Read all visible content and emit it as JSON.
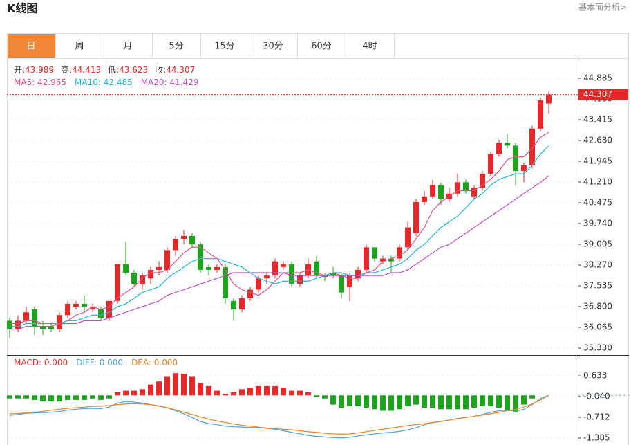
{
  "header": {
    "title": "K线图",
    "link": "基本面分析>"
  },
  "tabs": [
    "日",
    "周",
    "月",
    "5分",
    "15分",
    "30分",
    "60分",
    "4时"
  ],
  "info": [
    {
      "label": "开:",
      "value": "43.989"
    },
    {
      "label": "高:",
      "value": "44.413"
    },
    {
      "label": "低:",
      "value": "43.623"
    },
    {
      "label": "收:",
      "value": "44.307"
    }
  ],
  "chart_data": [
    {
      "type": "candlestick",
      "up_color": "#e52929",
      "down_color": "#1fa31f",
      "grid": true,
      "ylim": [
        35.085,
        45.546
      ],
      "yticks": [
        44.885,
        {
          "value": 44.15,
          "label": "44.150"
        },
        43.415,
        {
          "value": 42.68,
          "label": "42.680"
        },
        41.945,
        {
          "value": 41.21,
          "label": "41.210"
        },
        40.475,
        {
          "value": 39.74,
          "label": "39.740"
        },
        39.005,
        {
          "value": 38.27,
          "label": "38.270"
        },
        37.535,
        {
          "value": 36.8,
          "label": "36.800"
        },
        36.065,
        {
          "value": 35.33,
          "label": "35.330"
        }
      ],
      "last_price": 44.307,
      "open": [
        36.3,
        36.0,
        36.3,
        36.7,
        36.1,
        36.1,
        36.0,
        36.5,
        36.8,
        36.9,
        36.7,
        36.7,
        36.4,
        37.0,
        38.3,
        38.0,
        37.6,
        37.8,
        38.1,
        38.1,
        38.8,
        39.2,
        39.3,
        39.0,
        38.2,
        38.1,
        38.2,
        37.0,
        36.7,
        37.1,
        37.4,
        37.8,
        37.9,
        38.2,
        38.3,
        37.6,
        37.9,
        38.4,
        37.9,
        38.0,
        37.9,
        37.5,
        37.8,
        38.1,
        38.9,
        38.4,
        38.5,
        38.5,
        38.9,
        39.4,
        40.5,
        40.7,
        41.1,
        40.6,
        40.8,
        41.2,
        40.7,
        41.0,
        41.5,
        42.2,
        42.6,
        42.5,
        41.6,
        41.8,
        43.1,
        43.989
      ],
      "high": [
        36.4,
        36.5,
        36.8,
        36.8,
        36.3,
        36.2,
        36.6,
        37.0,
        37.0,
        37.2,
        36.9,
        36.8,
        37.0,
        38.3,
        39.1,
        38.1,
        38.0,
        38.2,
        38.4,
        38.9,
        39.3,
        39.5,
        39.4,
        39.1,
        38.3,
        38.3,
        38.3,
        37.1,
        37.2,
        37.5,
        37.9,
        38.0,
        38.5,
        38.4,
        38.4,
        38.0,
        38.5,
        38.6,
        38.0,
        38.2,
        38.0,
        38.0,
        38.2,
        39.0,
        38.9,
        38.6,
        38.6,
        39.0,
        39.8,
        40.6,
        40.9,
        41.3,
        41.2,
        41.0,
        41.5,
        41.3,
        41.1,
        41.6,
        42.3,
        42.7,
        42.9,
        42.6,
        41.9,
        43.2,
        44.2,
        44.413
      ],
      "low": [
        35.7,
        35.9,
        36.2,
        35.8,
        35.8,
        35.9,
        35.9,
        36.4,
        36.7,
        36.6,
        36.6,
        36.3,
        36.3,
        36.9,
        37.9,
        37.5,
        37.4,
        37.6,
        37.9,
        38.0,
        38.6,
        39.0,
        38.9,
        38.0,
        37.9,
        38.0,
        36.9,
        36.3,
        36.6,
        37.0,
        37.3,
        37.6,
        37.8,
        38.1,
        37.5,
        37.5,
        37.8,
        37.8,
        37.7,
        37.8,
        37.1,
        37.0,
        37.7,
        38.0,
        38.4,
        38.3,
        38.0,
        38.4,
        38.8,
        39.3,
        40.4,
        40.6,
        40.4,
        40.5,
        40.7,
        40.8,
        40.6,
        40.9,
        41.4,
        42.1,
        42.4,
        41.1,
        41.2,
        41.7,
        43.0,
        43.623
      ],
      "close": [
        36.0,
        36.3,
        36.6,
        36.1,
        36.0,
        36.0,
        36.5,
        36.9,
        36.9,
        36.8,
        36.8,
        36.4,
        37.0,
        38.3,
        38.0,
        37.6,
        37.9,
        38.1,
        38.2,
        38.8,
        39.2,
        39.3,
        39.0,
        38.1,
        38.1,
        38.2,
        37.1,
        36.7,
        37.1,
        37.4,
        37.8,
        37.9,
        38.4,
        38.3,
        37.6,
        37.9,
        38.3,
        37.9,
        37.85,
        37.9,
        37.3,
        37.9,
        38.1,
        38.9,
        38.5,
        38.5,
        38.4,
        38.9,
        39.6,
        40.5,
        40.7,
        41.1,
        40.6,
        40.8,
        41.2,
        40.9,
        41.0,
        41.5,
        42.2,
        42.6,
        42.5,
        41.6,
        41.8,
        43.1,
        44.1,
        44.307
      ],
      "series": [
        {
          "label": "MA5: 42.965",
          "color": "#e0508a",
          "values": [
            36.2,
            36.2,
            36.3,
            36.3,
            36.2,
            36.2,
            36.2,
            36.3,
            36.5,
            36.6,
            36.8,
            36.7,
            36.8,
            37.1,
            37.3,
            37.5,
            37.8,
            38.0,
            38.0,
            38.1,
            38.4,
            38.7,
            38.9,
            38.9,
            38.7,
            38.5,
            38.1,
            37.6,
            37.4,
            37.3,
            37.2,
            37.4,
            37.7,
            38.0,
            38.0,
            38.0,
            38.1,
            38.0,
            37.9,
            38.0,
            37.9,
            37.8,
            37.8,
            38.0,
            38.1,
            38.4,
            38.5,
            38.6,
            38.8,
            39.2,
            39.6,
            40.2,
            40.5,
            40.7,
            40.9,
            40.9,
            40.9,
            41.1,
            41.3,
            41.6,
            42.0,
            42.1,
            42.1,
            42.4,
            42.8,
            42.965
          ]
        },
        {
          "label": "MA10: 42.485",
          "color": "#1fb5d6",
          "values": [
            36.1,
            36.1,
            36.2,
            36.2,
            36.2,
            36.2,
            36.2,
            36.3,
            36.3,
            36.4,
            36.5,
            36.5,
            36.6,
            36.8,
            36.9,
            37.1,
            37.3,
            37.4,
            37.5,
            37.8,
            38.0,
            38.2,
            38.4,
            38.5,
            38.5,
            38.5,
            38.4,
            38.3,
            38.2,
            38.0,
            37.8,
            37.7,
            37.6,
            37.7,
            37.7,
            37.7,
            37.7,
            37.8,
            37.9,
            38.0,
            38.0,
            37.9,
            37.9,
            38.0,
            38.0,
            38.1,
            38.2,
            38.3,
            38.5,
            38.8,
            39.0,
            39.3,
            39.6,
            39.8,
            40.0,
            40.3,
            40.6,
            40.8,
            41.1,
            41.3,
            41.4,
            41.5,
            41.5,
            41.8,
            42.2,
            42.485
          ]
        },
        {
          "label": "MA20: 41.429",
          "color": "#c050c8",
          "values": [
            36.0,
            36.0,
            36.1,
            36.1,
            36.1,
            36.1,
            36.2,
            36.2,
            36.2,
            36.3,
            36.3,
            36.3,
            36.4,
            36.5,
            36.6,
            36.7,
            36.8,
            36.9,
            37.0,
            37.2,
            37.3,
            37.4,
            37.5,
            37.6,
            37.7,
            37.8,
            37.9,
            38.0,
            38.0,
            38.0,
            38.0,
            38.0,
            38.0,
            38.0,
            37.9,
            37.9,
            37.9,
            37.9,
            37.9,
            37.9,
            37.9,
            37.9,
            37.9,
            37.9,
            37.9,
            37.9,
            38.0,
            38.0,
            38.1,
            38.3,
            38.5,
            38.7,
            38.9,
            39.0,
            39.2,
            39.4,
            39.6,
            39.8,
            40.0,
            40.2,
            40.4,
            40.6,
            40.8,
            41.0,
            41.2,
            41.429
          ]
        }
      ]
    },
    {
      "type": "macd",
      "up_color": "#e52929",
      "down_color": "#1fa31f",
      "grid": true,
      "ylim": [
        -1.61,
        1.24
      ],
      "yticks": [
        0.633,
        {
          "value": -0.04,
          "label": "-0.040"
        },
        -0.712,
        -1.385
      ],
      "histogram": {
        "label": "MACD: 0.000",
        "color": "#e52929",
        "values": [
          -0.1,
          -0.1,
          -0.1,
          -0.15,
          -0.2,
          -0.2,
          -0.2,
          -0.15,
          -0.15,
          -0.15,
          -0.1,
          -0.15,
          -0.1,
          0.1,
          0.15,
          0.15,
          0.2,
          0.35,
          0.45,
          0.6,
          0.72,
          0.7,
          0.6,
          0.4,
          0.3,
          0.15,
          0.05,
          0.1,
          0.2,
          0.25,
          0.3,
          0.3,
          0.3,
          0.25,
          0.15,
          0.15,
          0.1,
          -0.05,
          -0.1,
          -0.3,
          -0.4,
          -0.35,
          -0.35,
          -0.4,
          -0.45,
          -0.5,
          -0.5,
          -0.45,
          -0.35,
          -0.3,
          -0.4,
          -0.4,
          -0.45,
          -0.45,
          -0.45,
          -0.45,
          -0.4,
          -0.35,
          -0.35,
          -0.4,
          -0.5,
          -0.55,
          -0.3,
          -0.1,
          0,
          0
        ]
      },
      "series": [
        {
          "label": "DIFF: 0.000",
          "color": "#4aa3e0",
          "values": [
            -0.65,
            -0.62,
            -0.58,
            -0.57,
            -0.56,
            -0.55,
            -0.52,
            -0.48,
            -0.45,
            -0.43,
            -0.42,
            -0.43,
            -0.38,
            -0.25,
            -0.2,
            -0.22,
            -0.25,
            -0.3,
            -0.35,
            -0.4,
            -0.5,
            -0.6,
            -0.72,
            -0.85,
            -0.92,
            -0.95,
            -1.0,
            -1.02,
            -1.03,
            -1.04,
            -1.05,
            -1.07,
            -1.1,
            -1.15,
            -1.2,
            -1.25,
            -1.3,
            -1.33,
            -1.35,
            -1.37,
            -1.38,
            -1.36,
            -1.32,
            -1.28,
            -1.25,
            -1.22,
            -1.2,
            -1.17,
            -1.12,
            -1.05,
            -0.95,
            -0.88,
            -0.85,
            -0.8,
            -0.75,
            -0.72,
            -0.68,
            -0.62,
            -0.55,
            -0.5,
            -0.48,
            -0.52,
            -0.45,
            -0.3,
            -0.1,
            0
          ]
        },
        {
          "label": "DEA: 0.000",
          "color": "#f08020",
          "values": [
            -0.6,
            -0.59,
            -0.57,
            -0.55,
            -0.52,
            -0.48,
            -0.45,
            -0.42,
            -0.4,
            -0.38,
            -0.36,
            -0.35,
            -0.33,
            -0.3,
            -0.28,
            -0.27,
            -0.28,
            -0.3,
            -0.34,
            -0.4,
            -0.47,
            -0.55,
            -0.62,
            -0.7,
            -0.77,
            -0.83,
            -0.88,
            -0.93,
            -0.97,
            -1.0,
            -1.03,
            -1.06,
            -1.08,
            -1.1,
            -1.12,
            -1.15,
            -1.18,
            -1.2,
            -1.23,
            -1.25,
            -1.26,
            -1.25,
            -1.22,
            -1.18,
            -1.14,
            -1.1,
            -1.06,
            -1.02,
            -0.98,
            -0.95,
            -0.92,
            -0.88,
            -0.84,
            -0.8,
            -0.76,
            -0.72,
            -0.68,
            -0.64,
            -0.6,
            -0.55,
            -0.5,
            -0.45,
            -0.38,
            -0.28,
            -0.15,
            0
          ]
        }
      ]
    }
  ]
}
